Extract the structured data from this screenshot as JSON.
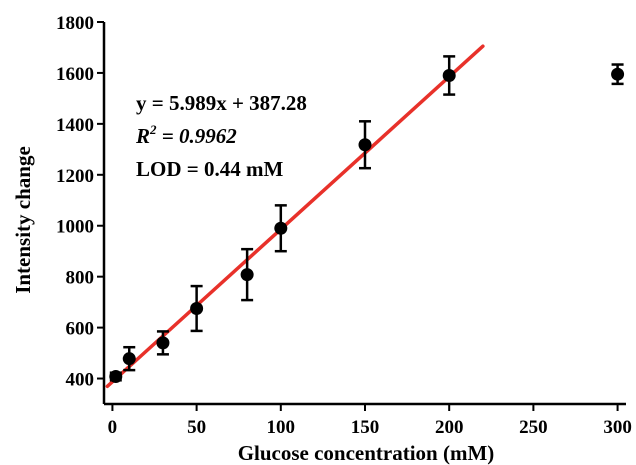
{
  "chart_data": {
    "type": "scatter",
    "title": "",
    "xlabel": "Glucose concentration (mM)",
    "ylabel": "Intensity change",
    "xlim": [
      -5,
      305
    ],
    "ylim": [
      300,
      1800
    ],
    "x_ticks": [
      0,
      50,
      100,
      150,
      200,
      250,
      300
    ],
    "y_ticks": [
      400,
      600,
      800,
      1000,
      1200,
      1400,
      1600,
      1800
    ],
    "grid": false,
    "legend": "none",
    "series": [
      {
        "color": "#000000",
        "points": [
          {
            "x": 2,
            "y": 408,
            "err": 15
          },
          {
            "x": 10,
            "y": 478,
            "err": 45
          },
          {
            "x": 30,
            "y": 540,
            "err": 45
          },
          {
            "x": 50,
            "y": 675,
            "err": 88
          },
          {
            "x": 80,
            "y": 808,
            "err": 100
          },
          {
            "x": 100,
            "y": 990,
            "err": 90
          },
          {
            "x": 150,
            "y": 1318,
            "err": 92
          },
          {
            "x": 200,
            "y": 1590,
            "err": 75
          },
          {
            "x": 300,
            "y": 1595,
            "err": 38
          }
        ]
      }
    ],
    "fit_line": {
      "color": "#e8312a",
      "slope": 5.989,
      "intercept": 387.28,
      "x_range": [
        -3,
        220
      ]
    },
    "annotations": {
      "equation": "y = 5.989x + 387.28",
      "r2_prefix": "R",
      "r2_sup": "2",
      "r2_suffix": " = 0.9962",
      "lod": "LOD = 0.44 mM"
    }
  }
}
